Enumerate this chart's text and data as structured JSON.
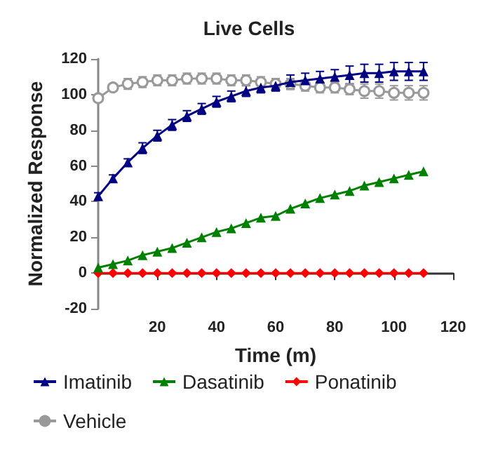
{
  "chart_data": {
    "type": "line",
    "title": "Live Cells",
    "xlabel": "Time (m)",
    "ylabel": "Normalized Response",
    "x": [
      0,
      5,
      10,
      15,
      20,
      25,
      30,
      35,
      40,
      45,
      50,
      55,
      60,
      65,
      70,
      75,
      80,
      85,
      90,
      95,
      100,
      105,
      110
    ],
    "xlim": [
      0,
      120
    ],
    "xticks": [
      20,
      40,
      60,
      80,
      100,
      120
    ],
    "ylim": [
      -20,
      120
    ],
    "yticks": [
      -20,
      0,
      20,
      40,
      60,
      80,
      100,
      120
    ],
    "legend": "bottom",
    "line_style": "solid",
    "series": [
      {
        "name": "Imatinib",
        "color": "#000080",
        "marker": "triangle",
        "values": [
          43,
          53,
          62,
          70,
          77,
          83,
          88,
          92,
          96,
          99,
          102,
          104,
          105,
          107,
          108,
          109,
          110,
          111,
          112,
          112,
          113,
          113,
          113
        ],
        "errors": [
          2,
          2,
          2,
          3,
          3,
          3,
          3,
          3,
          3,
          3,
          3,
          3,
          3,
          4,
          4,
          4,
          4,
          5,
          5,
          5,
          5,
          5,
          5
        ]
      },
      {
        "name": "Dasatinib",
        "color": "#008000",
        "marker": "triangle",
        "values": [
          3,
          5,
          7,
          10,
          12,
          14,
          17,
          20,
          23,
          25,
          28,
          31,
          32,
          36,
          39,
          42,
          44,
          46,
          49,
          51,
          53,
          55,
          57
        ]
      },
      {
        "name": "Ponatinib",
        "color": "#ff0000",
        "marker": "diamond",
        "values": [
          0,
          0,
          0,
          0,
          0,
          0,
          0,
          0,
          0,
          0,
          0,
          0,
          0,
          0,
          0,
          0,
          0,
          0,
          0,
          0,
          0,
          0,
          0
        ]
      },
      {
        "name": "Vehicle",
        "color": "#999999",
        "marker": "circle",
        "values": [
          98,
          104,
          106,
          107,
          108,
          108,
          109,
          109,
          109,
          108,
          108,
          107,
          106,
          106,
          105,
          104,
          104,
          103,
          102,
          102,
          101,
          101,
          101
        ],
        "errors": [
          2,
          2,
          3,
          3,
          3,
          3,
          3,
          3,
          3,
          3,
          3,
          3,
          3,
          3,
          3,
          3,
          3,
          3,
          4,
          4,
          4,
          4,
          4
        ]
      }
    ]
  }
}
